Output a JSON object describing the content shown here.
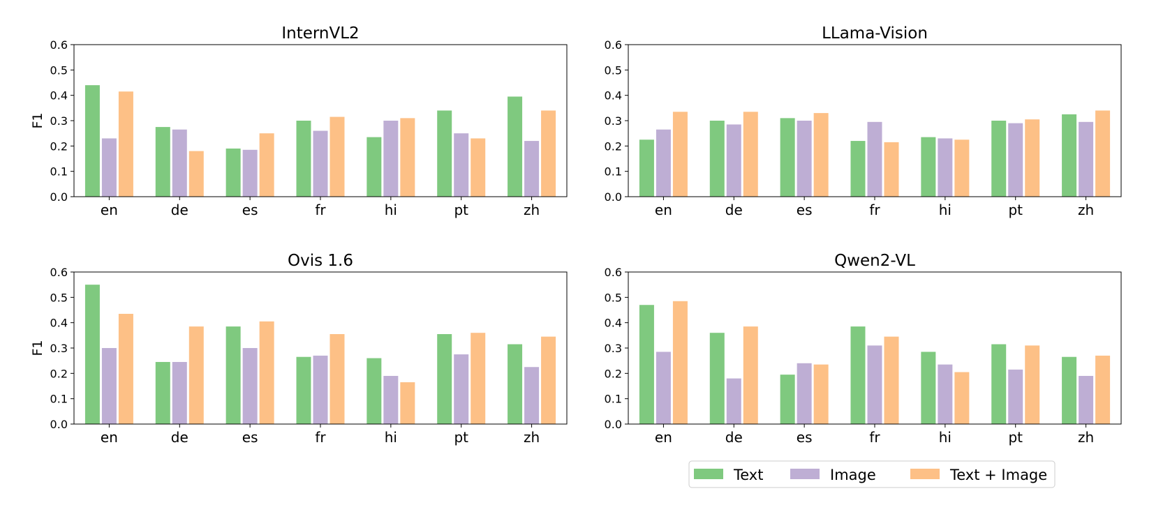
{
  "chart_data": [
    {
      "type": "bar",
      "title": "InternVL2",
      "ylabel": "F1",
      "ylim": [
        0,
        0.6
      ],
      "yticks": [
        "0.0",
        "0.1",
        "0.2",
        "0.3",
        "0.4",
        "0.5",
        "0.6"
      ],
      "categories": [
        "en",
        "de",
        "es",
        "fr",
        "hi",
        "pt",
        "zh"
      ],
      "series": [
        {
          "name": "Text",
          "values": [
            0.44,
            0.275,
            0.19,
            0.3,
            0.235,
            0.34,
            0.395
          ]
        },
        {
          "name": "Image",
          "values": [
            0.23,
            0.265,
            0.185,
            0.26,
            0.3,
            0.25,
            0.22
          ]
        },
        {
          "name": "Text + Image",
          "values": [
            0.415,
            0.18,
            0.25,
            0.315,
            0.31,
            0.23,
            0.34
          ]
        }
      ]
    },
    {
      "type": "bar",
      "title": "LLama-Vision",
      "ylabel": "",
      "ylim": [
        0,
        0.6
      ],
      "yticks": [
        "0.0",
        "0.1",
        "0.2",
        "0.3",
        "0.4",
        "0.5",
        "0.6"
      ],
      "categories": [
        "en",
        "de",
        "es",
        "fr",
        "hi",
        "pt",
        "zh"
      ],
      "series": [
        {
          "name": "Text",
          "values": [
            0.225,
            0.3,
            0.31,
            0.22,
            0.235,
            0.3,
            0.325
          ]
        },
        {
          "name": "Image",
          "values": [
            0.265,
            0.285,
            0.3,
            0.295,
            0.23,
            0.29,
            0.295
          ]
        },
        {
          "name": "Text + Image",
          "values": [
            0.335,
            0.335,
            0.33,
            0.215,
            0.225,
            0.305,
            0.34
          ]
        }
      ]
    },
    {
      "type": "bar",
      "title": "Ovis 1.6",
      "ylabel": "F1",
      "ylim": [
        0,
        0.6
      ],
      "yticks": [
        "0.0",
        "0.1",
        "0.2",
        "0.3",
        "0.4",
        "0.5",
        "0.6"
      ],
      "categories": [
        "en",
        "de",
        "es",
        "fr",
        "hi",
        "pt",
        "zh"
      ],
      "series": [
        {
          "name": "Text",
          "values": [
            0.55,
            0.245,
            0.385,
            0.265,
            0.26,
            0.355,
            0.315
          ]
        },
        {
          "name": "Image",
          "values": [
            0.3,
            0.245,
            0.3,
            0.27,
            0.19,
            0.275,
            0.225
          ]
        },
        {
          "name": "Text + Image",
          "values": [
            0.435,
            0.385,
            0.405,
            0.355,
            0.165,
            0.36,
            0.345
          ]
        }
      ]
    },
    {
      "type": "bar",
      "title": "Qwen2-VL",
      "ylabel": "",
      "ylim": [
        0,
        0.6
      ],
      "yticks": [
        "0.0",
        "0.1",
        "0.2",
        "0.3",
        "0.4",
        "0.5",
        "0.6"
      ],
      "categories": [
        "en",
        "de",
        "es",
        "fr",
        "hi",
        "pt",
        "zh"
      ],
      "series": [
        {
          "name": "Text",
          "values": [
            0.47,
            0.36,
            0.195,
            0.385,
            0.285,
            0.315,
            0.265
          ]
        },
        {
          "name": "Image",
          "values": [
            0.285,
            0.18,
            0.24,
            0.31,
            0.235,
            0.215,
            0.19
          ]
        },
        {
          "name": "Text + Image",
          "values": [
            0.485,
            0.385,
            0.235,
            0.345,
            0.205,
            0.31,
            0.27
          ]
        }
      ]
    }
  ],
  "legend": {
    "placement": "bottom-right",
    "items": [
      {
        "label": "Text",
        "color": "#7fc97f"
      },
      {
        "label": "Image",
        "color": "#beaed4"
      },
      {
        "label": "Text + Image",
        "color": "#fdc086"
      }
    ]
  }
}
